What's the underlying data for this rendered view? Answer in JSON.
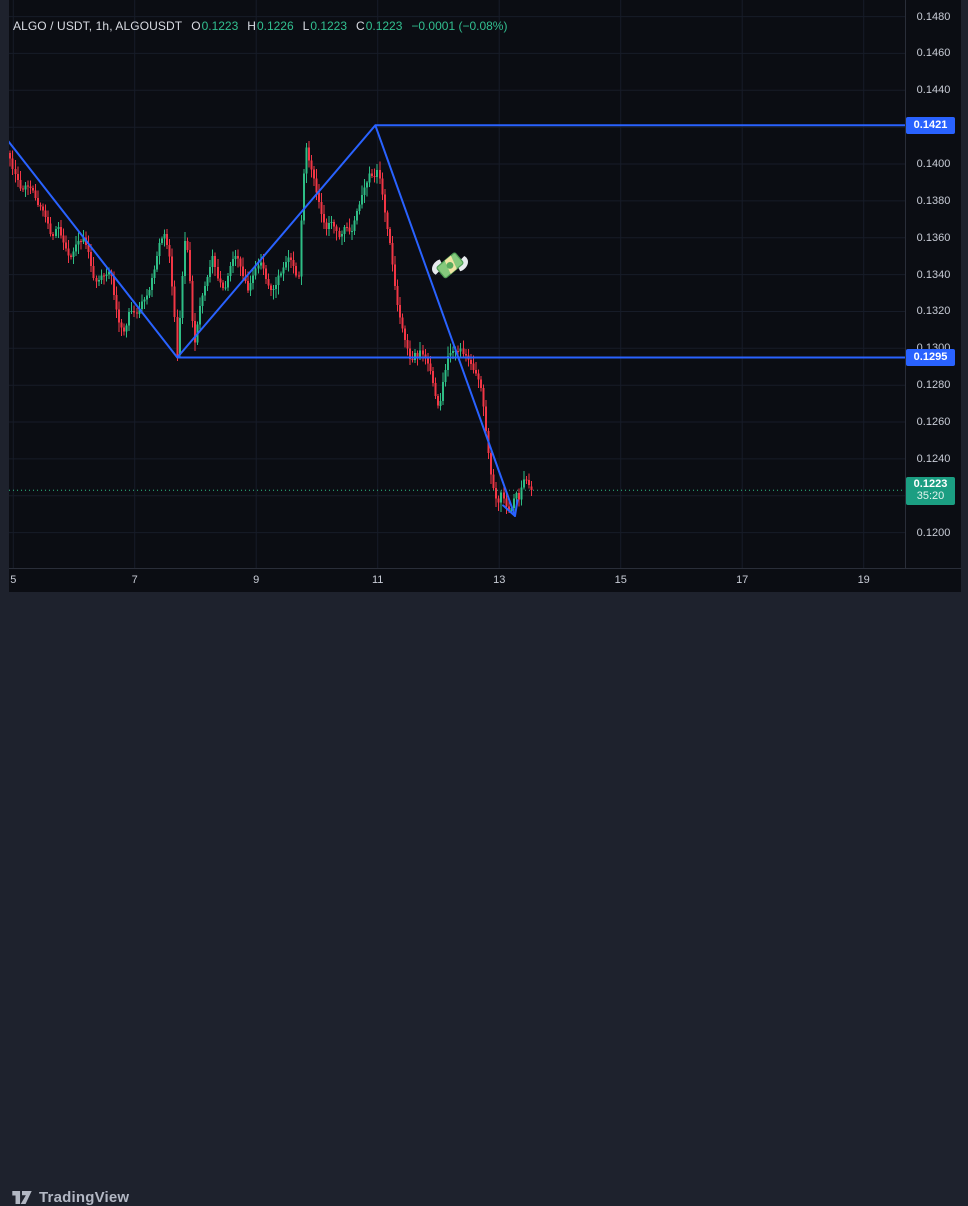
{
  "header": {
    "symbol": "ALGO / USDT, 1h, ALGOUSDT",
    "ohlc": [
      {
        "label": "O",
        "value": "0.1223"
      },
      {
        "label": "H",
        "value": "0.1226"
      },
      {
        "label": "L",
        "value": "0.1223"
      },
      {
        "label": "C",
        "value": "0.1223"
      }
    ],
    "change": "−0.0001 (−0.08%)"
  },
  "price_scale": {
    "labels": [
      {
        "text": "0.1480",
        "value": 0.148
      },
      {
        "text": "0.1460",
        "value": 0.146
      },
      {
        "text": "0.1440",
        "value": 0.144
      },
      {
        "text": "0.1400",
        "value": 0.14
      },
      {
        "text": "0.1380",
        "value": 0.138
      },
      {
        "text": "0.1360",
        "value": 0.136
      },
      {
        "text": "0.1340",
        "value": 0.134
      },
      {
        "text": "0.1320",
        "value": 0.132
      },
      {
        "text": "0.1300",
        "value": 0.13
      },
      {
        "text": "0.1280",
        "value": 0.128
      },
      {
        "text": "0.1260",
        "value": 0.126
      },
      {
        "text": "0.1240",
        "value": 0.124
      },
      {
        "text": "0.1200",
        "value": 0.12
      }
    ],
    "upper_line_label": {
      "text": "0.1421",
      "value": 0.1421
    },
    "lower_line_label": {
      "text": "0.1295",
      "value": 0.1295
    },
    "last_price_label": {
      "text": "0.1223",
      "countdown": "35:20",
      "value": 0.1223
    }
  },
  "time_scale": {
    "labels": [
      {
        "text": "5",
        "value": 5
      },
      {
        "text": "7",
        "value": 7
      },
      {
        "text": "9",
        "value": 9
      },
      {
        "text": "11",
        "value": 11
      },
      {
        "text": "13",
        "value": 13
      },
      {
        "text": "15",
        "value": 15
      },
      {
        "text": "17",
        "value": 17
      },
      {
        "text": "19",
        "value": 19
      }
    ]
  },
  "watermark_logo": "TradingView",
  "colors": {
    "background": "#0b0d13",
    "panel": "#1e222d",
    "grid": "#171c28",
    "border": "#2a2e39",
    "bullish": "#2ebd85",
    "bearish": "#f23645",
    "drawing_blue": "#2962ff",
    "label_green": "#1b9e82",
    "axis_text": "#c8ccd6"
  },
  "chart_data": {
    "type": "candlestick",
    "title": "ALGO / USDT, 1h, ALGOUSDT",
    "interval": "1h",
    "x_unit": "day of month",
    "xlim": [
      4.93,
      19.68
    ],
    "ylim": [
      0.11808,
      0.1489
    ],
    "x_ticks": [
      5,
      7,
      9,
      11,
      13,
      15,
      17,
      19
    ],
    "y_grid": [
      0.12,
      0.122,
      0.124,
      0.126,
      0.128,
      0.13,
      0.132,
      0.134,
      0.136,
      0.138,
      0.14,
      0.142,
      0.144,
      0.146,
      0.148
    ],
    "grid": true,
    "candle_start": 4.95,
    "candle_count": 207,
    "candles_per_day": 24,
    "last_candle": {
      "open": 0.1225,
      "high": 0.1228,
      "low": 0.122,
      "close": 0.1223
    },
    "current": {
      "open": 0.1223,
      "high": 0.1226,
      "low": 0.1223,
      "close": 0.1223,
      "change": -0.0001,
      "change_pct": -0.08
    },
    "price_path": [
      [
        4.92,
        0.1406
      ],
      [
        5.0,
        0.1396
      ],
      [
        5.08,
        0.139
      ],
      [
        5.15,
        0.1385
      ],
      [
        5.23,
        0.1389
      ],
      [
        5.31,
        0.1387
      ],
      [
        5.41,
        0.1378
      ],
      [
        5.53,
        0.1372
      ],
      [
        5.64,
        0.136
      ],
      [
        5.74,
        0.1366
      ],
      [
        5.84,
        0.1355
      ],
      [
        5.94,
        0.1348
      ],
      [
        6.04,
        0.1356
      ],
      [
        6.15,
        0.136
      ],
      [
        6.24,
        0.1352
      ],
      [
        6.35,
        0.1335
      ],
      [
        6.48,
        0.134
      ],
      [
        6.6,
        0.1342
      ],
      [
        6.73,
        0.1315
      ],
      [
        6.83,
        0.1308
      ],
      [
        6.93,
        0.1322
      ],
      [
        7.02,
        0.1318
      ],
      [
        7.12,
        0.1326
      ],
      [
        7.22,
        0.133
      ],
      [
        7.32,
        0.1342
      ],
      [
        7.42,
        0.1358
      ],
      [
        7.5,
        0.1362
      ],
      [
        7.58,
        0.1348
      ],
      [
        7.65,
        0.132
      ],
      [
        7.7,
        0.1297
      ],
      [
        7.75,
        0.132
      ],
      [
        7.79,
        0.1342
      ],
      [
        7.83,
        0.136
      ],
      [
        7.88,
        0.135
      ],
      [
        7.92,
        0.1332
      ],
      [
        7.96,
        0.131
      ],
      [
        8.0,
        0.1302
      ],
      [
        8.05,
        0.1318
      ],
      [
        8.1,
        0.1328
      ],
      [
        8.15,
        0.1332
      ],
      [
        8.21,
        0.134
      ],
      [
        8.28,
        0.135
      ],
      [
        8.37,
        0.1338
      ],
      [
        8.47,
        0.133
      ],
      [
        8.57,
        0.1345
      ],
      [
        8.67,
        0.1352
      ],
      [
        8.77,
        0.134
      ],
      [
        8.87,
        0.1332
      ],
      [
        8.97,
        0.1342
      ],
      [
        9.07,
        0.1348
      ],
      [
        9.16,
        0.1338
      ],
      [
        9.26,
        0.133
      ],
      [
        9.36,
        0.1338
      ],
      [
        9.46,
        0.1345
      ],
      [
        9.56,
        0.135
      ],
      [
        9.66,
        0.134
      ],
      [
        9.7,
        0.134
      ],
      [
        9.75,
        0.1374
      ],
      [
        9.81,
        0.1412
      ],
      [
        9.85,
        0.1405
      ],
      [
        9.9,
        0.1398
      ],
      [
        9.96,
        0.139
      ],
      [
        10.02,
        0.138
      ],
      [
        10.08,
        0.1372
      ],
      [
        10.14,
        0.1364
      ],
      [
        10.22,
        0.137
      ],
      [
        10.3,
        0.1366
      ],
      [
        10.38,
        0.136
      ],
      [
        10.47,
        0.1366
      ],
      [
        10.55,
        0.1362
      ],
      [
        10.63,
        0.137
      ],
      [
        10.71,
        0.138
      ],
      [
        10.79,
        0.1388
      ],
      [
        10.88,
        0.1395
      ],
      [
        10.94,
        0.1392
      ],
      [
        11.01,
        0.1398
      ],
      [
        11.06,
        0.1386
      ],
      [
        11.11,
        0.1375
      ],
      [
        11.16,
        0.1364
      ],
      [
        11.21,
        0.1355
      ],
      [
        11.26,
        0.134
      ],
      [
        11.3,
        0.1328
      ],
      [
        11.35,
        0.132
      ],
      [
        11.4,
        0.1312
      ],
      [
        11.45,
        0.1305
      ],
      [
        11.5,
        0.1298
      ],
      [
        11.55,
        0.1291
      ],
      [
        11.6,
        0.1298
      ],
      [
        11.65,
        0.1294
      ],
      [
        11.7,
        0.1298
      ],
      [
        11.77,
        0.1296
      ],
      [
        11.83,
        0.1292
      ],
      [
        11.9,
        0.1282
      ],
      [
        11.96,
        0.1272
      ],
      [
        12.01,
        0.1267
      ],
      [
        12.06,
        0.1278
      ],
      [
        12.11,
        0.1288
      ],
      [
        12.16,
        0.1296
      ],
      [
        12.23,
        0.13
      ],
      [
        12.29,
        0.1298
      ],
      [
        12.36,
        0.13
      ],
      [
        12.42,
        0.1296
      ],
      [
        12.49,
        0.1294
      ],
      [
        12.56,
        0.129
      ],
      [
        12.62,
        0.1285
      ],
      [
        12.69,
        0.128
      ],
      [
        12.74,
        0.1268
      ],
      [
        12.79,
        0.1254
      ],
      [
        12.84,
        0.124
      ],
      [
        12.88,
        0.1228
      ],
      [
        12.93,
        0.122
      ],
      [
        12.98,
        0.1215
      ],
      [
        13.03,
        0.1222
      ],
      [
        13.08,
        0.1218
      ],
      [
        13.13,
        0.1214
      ],
      [
        13.18,
        0.1212
      ],
      [
        13.23,
        0.1218
      ],
      [
        13.28,
        0.1222
      ],
      [
        13.33,
        0.1218
      ],
      [
        13.38,
        0.1226
      ],
      [
        13.43,
        0.123
      ],
      [
        13.48,
        0.1226
      ],
      [
        13.53,
        0.1223
      ]
    ],
    "drawings": {
      "zigzag_polyline": [
        [
          4.88,
          0.1414
        ],
        [
          7.7,
          0.1295
        ],
        [
          10.96,
          0.1421
        ],
        [
          13.26,
          0.1209
        ]
      ],
      "zigzag_arrow_end": true,
      "ray_upper": {
        "price": 0.1421,
        "from_t": 10.96
      },
      "ray_lower": {
        "price": 0.1295,
        "from_t": 7.7
      },
      "last_price_line": 0.1223,
      "emoji": {
        "name": "money-with-wings",
        "t": 12.19,
        "price": 0.1345,
        "rotation": -40
      }
    }
  }
}
